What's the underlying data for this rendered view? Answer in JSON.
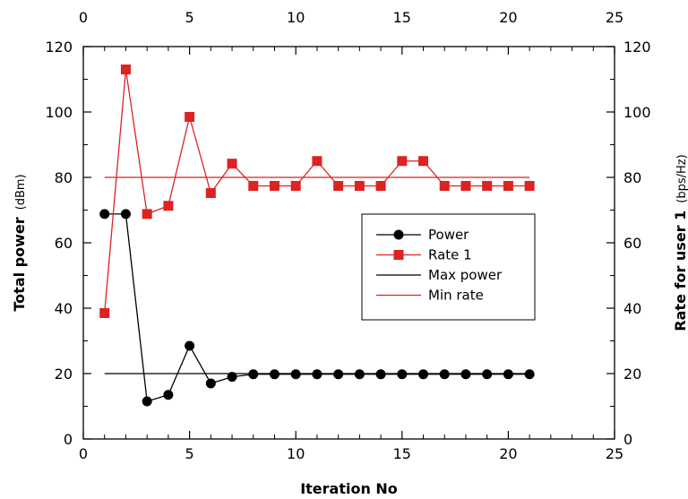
{
  "chart_data": {
    "type": "line",
    "xlabel": "Iteration No",
    "ylabel": "Total power",
    "ylabel_unit": "(dBm)",
    "y2label": "Rate for user 1",
    "y2label_unit": "(bps/Hz)",
    "xlim": [
      0,
      25
    ],
    "ylim": [
      0,
      120
    ],
    "x_ticks": [
      "0",
      "5",
      "10",
      "15",
      "20",
      "25"
    ],
    "y_ticks": [
      "0",
      "20",
      "40",
      "60",
      "80",
      "100",
      "120"
    ],
    "grid": false,
    "legend_position": "center-right",
    "series": [
      {
        "name": "Power",
        "color": "#000000",
        "marker": "circle",
        "x": [
          1,
          2,
          3,
          4,
          5,
          6,
          7,
          8,
          9,
          10,
          11,
          12,
          13,
          14,
          15,
          16,
          17,
          18,
          19,
          20,
          21
        ],
        "y": [
          68.8,
          68.8,
          11.5,
          13.5,
          28.5,
          17.0,
          19.0,
          19.8,
          19.8,
          19.8,
          19.8,
          19.8,
          19.8,
          19.8,
          19.8,
          19.8,
          19.8,
          19.8,
          19.8,
          19.8,
          19.8
        ]
      },
      {
        "name": "Rate 1",
        "color": "#dd2222",
        "marker": "square",
        "x": [
          1,
          2,
          3,
          4,
          5,
          6,
          7,
          8,
          9,
          10,
          11,
          12,
          13,
          14,
          15,
          16,
          17,
          18,
          19,
          20,
          21
        ],
        "y": [
          38.5,
          113.0,
          68.8,
          71.3,
          98.5,
          75.2,
          84.2,
          77.4,
          77.4,
          77.4,
          85.0,
          77.4,
          77.4,
          77.4,
          85.0,
          85.0,
          77.4,
          77.4,
          77.4,
          77.4,
          77.4
        ]
      },
      {
        "name": "Max power",
        "color": "#000000",
        "marker": "none",
        "x": [
          1,
          21
        ],
        "y": [
          20,
          20
        ]
      },
      {
        "name": "Min rate",
        "color": "#dd2222",
        "marker": "none",
        "x": [
          1,
          21
        ],
        "y": [
          80,
          80
        ]
      }
    ]
  }
}
